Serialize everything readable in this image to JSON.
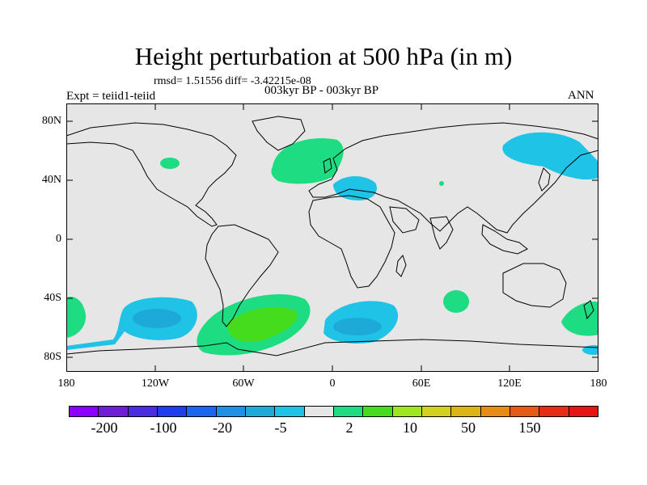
{
  "title": "Height perturbation at 500 hPa (in m)",
  "stats": "rmsd= 1.51556 diff= -3.42215e-08",
  "experiment": "Expt = teiid1-teiid",
  "period": "003kyr BP - 003kyr BP",
  "season": "ANN",
  "map": {
    "projection": "cylindrical equidistant",
    "background_color": "#e6e6e6",
    "lat_ticks": [
      "80N",
      "40N",
      "0",
      "40S",
      "80S"
    ],
    "lon_ticks": [
      "180",
      "120W",
      "60W",
      "0",
      "60E",
      "120E",
      "180"
    ]
  },
  "colorbar": {
    "colors": [
      "#8b00ff",
      "#6b1fd6",
      "#4a2de0",
      "#1e3cf0",
      "#1a66f0",
      "#1e90e6",
      "#1eaad8",
      "#1ec3e6",
      "#e6e6e6",
      "#1edc82",
      "#46dc1e",
      "#a0e61e",
      "#d2d21e",
      "#dcb414",
      "#e68c14",
      "#e65a14",
      "#e62d14",
      "#e61414"
    ],
    "labels": [
      "-200",
      "-100",
      "-20",
      "-5",
      "2",
      "10",
      "50",
      "150"
    ]
  }
}
